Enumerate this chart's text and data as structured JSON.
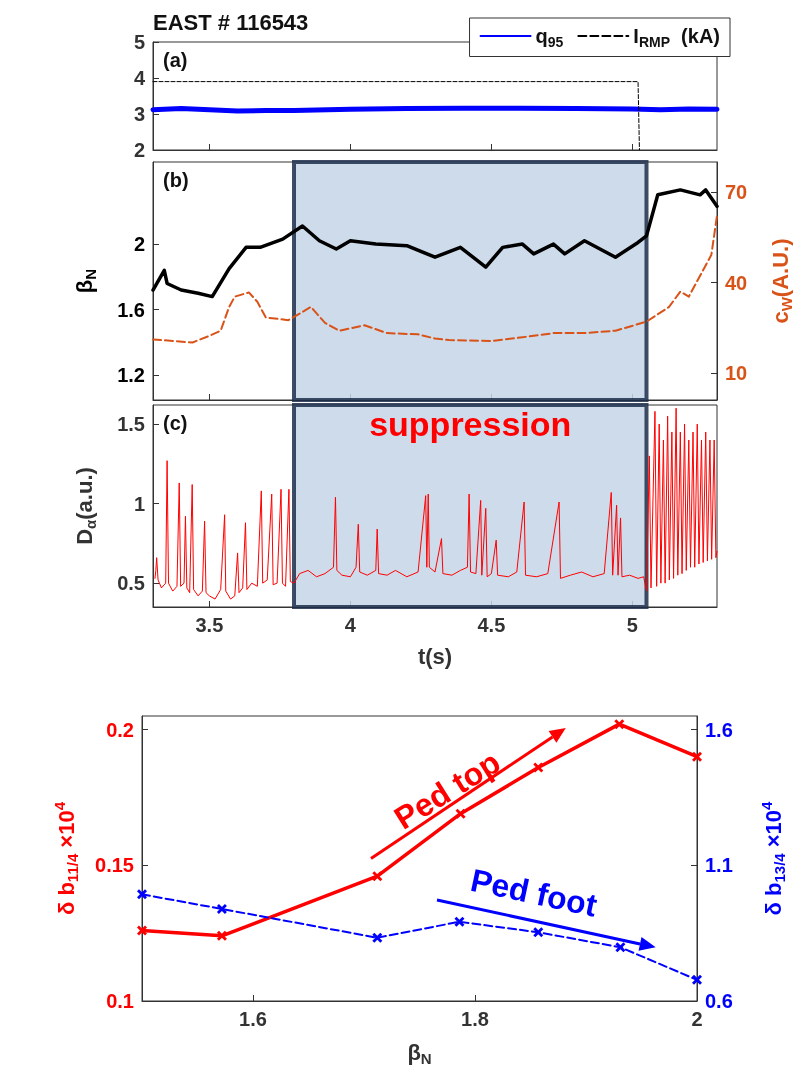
{
  "chart_data": [
    {
      "type": "line",
      "title": "EAST # 116543",
      "annotations": [
        "(a)"
      ],
      "xlim": [
        3.3,
        5.3
      ],
      "xticks": [
        3.5,
        4,
        4.5,
        5
      ],
      "ylim": [
        2,
        5
      ],
      "yticks": [
        2,
        3,
        4,
        5
      ],
      "tick_labels": "y",
      "legend": "top right",
      "marker": "none",
      "series": [
        {
          "name": "q$_{95}$",
          "color": "#0000ff",
          "line_style": "solid",
          "x": [
            3.3,
            3.4,
            3.5,
            3.6,
            3.7,
            3.8,
            4,
            4.2,
            4.4,
            4.6,
            4.8,
            5,
            5.1,
            5.2,
            5.3
          ],
          "values": [
            3.12,
            3.15,
            3.12,
            3.08,
            3.1,
            3.1,
            3.13,
            3.15,
            3.16,
            3.16,
            3.15,
            3.14,
            3.12,
            3.14,
            3.13
          ]
        },
        {
          "name": "I$_{RMP}$  (kA)",
          "color": "#000000",
          "line_style": "dashed",
          "x": [
            3.3,
            5.02,
            5.025
          ],
          "values": [
            3.9,
            3.9,
            2
          ]
        }
      ]
    },
    {
      "type": "line",
      "ylabel": "β$_{N}$",
      "y2label": "c$_{W}$(A.U.)",
      "annotations": [
        "(b)"
      ],
      "xlim": [
        3.3,
        5.3
      ],
      "xticks": [
        3.5,
        4,
        4.5,
        5
      ],
      "ylim": [
        1.05,
        2.5
      ],
      "yticks": [
        1.2,
        1.6,
        2
      ],
      "y2lim": [
        1,
        80
      ],
      "y2ticks": [
        10,
        40,
        70
      ],
      "tick_labels": "y",
      "marker": "none",
      "bands": [
        {
          "axis": "x",
          "from": 3.8,
          "to": 5.05,
          "color": "#c5d5e8"
        }
      ],
      "series": [
        {
          "color": "#000000",
          "line_style": "solid",
          "x": [
            3.3,
            3.34,
            3.35,
            3.4,
            3.46,
            3.51,
            3.57,
            3.63,
            3.68,
            3.76,
            3.83,
            3.89,
            3.95,
            4.0,
            4.09,
            4.2,
            4.3,
            4.39,
            4.48,
            4.54,
            4.61,
            4.65,
            4.72,
            4.76,
            4.83,
            4.94,
            5.02,
            5.05,
            5.09,
            5.17,
            5.24,
            5.26,
            5.3
          ],
          "values": [
            1.72,
            1.84,
            1.76,
            1.72,
            1.7,
            1.68,
            1.85,
            1.98,
            1.98,
            2.03,
            2.11,
            2.02,
            1.97,
            2.02,
            2.0,
            1.99,
            1.92,
            1.98,
            1.86,
            1.98,
            2.0,
            1.94,
            2.0,
            1.94,
            2.02,
            1.92,
            2.01,
            2.05,
            2.3,
            2.33,
            2.3,
            2.33,
            2.23
          ]
        },
        {
          "color": "#d95319",
          "axis": "y2",
          "line_style": "dashed",
          "x": [
            3.3,
            3.44,
            3.5,
            3.54,
            3.57,
            3.59,
            3.64,
            3.67,
            3.7,
            3.78,
            3.86,
            3.91,
            3.96,
            4.05,
            4.13,
            4.24,
            4.3,
            4.35,
            4.5,
            4.61,
            4.72,
            4.83,
            4.94,
            5.05,
            5.13,
            5.17,
            5.2,
            5.28,
            5.3
          ],
          "values": [
            21.1,
            20.1,
            22.3,
            24,
            31.9,
            35.3,
            36.7,
            33.6,
            28.4,
            27.5,
            31.9,
            26.6,
            24,
            25.8,
            23.2,
            22.8,
            21.4,
            20.9,
            20.6,
            21.8,
            23.2,
            23.2,
            24,
            27,
            31.9,
            37,
            35.3,
            49.2,
            62.2
          ]
        }
      ]
    },
    {
      "type": "line",
      "ylabel": "D$_{α}$(a.u.)",
      "xlabel": "t(s)",
      "annotations": [
        "(c)"
      ],
      "xlim": [
        3.3,
        5.3
      ],
      "xticks": [
        3.5,
        4,
        4.5,
        5
      ],
      "ylim": [
        0.35,
        1.62
      ],
      "yticks": [
        0.5,
        1,
        1.5
      ],
      "marker": "none",
      "bands": [
        {
          "axis": "x",
          "from": 3.8,
          "to": 5.05,
          "color": "#c5d5e8",
          "label": "suppression"
        }
      ],
      "series": [
        {
          "color": "#ff0000",
          "line_style": "solid",
          "x": [
            3.307,
            3.31,
            3.313,
            3.318,
            3.33,
            3.345,
            3.35,
            3.355,
            3.37,
            3.385,
            3.393,
            3.398,
            3.41,
            3.415,
            3.42,
            3.43,
            3.439,
            3.444,
            3.46,
            3.475,
            3.483,
            3.488,
            3.5,
            3.52,
            3.54,
            3.554,
            3.558,
            3.575,
            3.59,
            3.6,
            3.605,
            3.618,
            3.628,
            3.633,
            3.65,
            3.67,
            3.684,
            3.689,
            3.705,
            3.721,
            3.726,
            3.74,
            3.754,
            3.759,
            3.77,
            3.782,
            3.787,
            3.8,
            3.82,
            3.85,
            3.88,
            3.91,
            3.94,
            3.947,
            3.952,
            3.97,
            4.0,
            4.02,
            4.028,
            4.033,
            4.06,
            4.09,
            4.095,
            4.1,
            4.13,
            4.16,
            4.2,
            4.24,
            4.267,
            4.271,
            4.276,
            4.28,
            4.3,
            4.323,
            4.328,
            4.36,
            4.39,
            4.415,
            4.421,
            4.426,
            4.445,
            4.462,
            4.466,
            4.48,
            4.485,
            4.5,
            4.517,
            4.522,
            4.56,
            4.59,
            4.616,
            4.621,
            4.66,
            4.7,
            4.74,
            4.745,
            4.78,
            4.82,
            4.86,
            4.9,
            4.925,
            4.93,
            4.944,
            4.949,
            4.958,
            4.963,
            4.99,
            5.02,
            5.04,
            5.05,
            5.06,
            5.066,
            5.08,
            5.086,
            5.095,
            5.101,
            5.11,
            5.116,
            5.125,
            5.131,
            5.14,
            5.146,
            5.155,
            5.161,
            5.17,
            5.176,
            5.185,
            5.191,
            5.2,
            5.206,
            5.215,
            5.221,
            5.23,
            5.236,
            5.245,
            5.251,
            5.26,
            5.266,
            5.275,
            5.281,
            5.29,
            5.296,
            5.3
          ],
          "values": [
            0.53,
            0.58,
            0.66,
            0.52,
            0.47,
            0.5,
            1.27,
            0.5,
            0.45,
            0.48,
            1.13,
            0.48,
            0.5,
            0.92,
            0.47,
            0.44,
            1.12,
            0.46,
            0.42,
            0.45,
            0.89,
            0.44,
            0.42,
            0.4,
            0.46,
            0.93,
            0.45,
            0.4,
            0.42,
            0.69,
            0.44,
            0.47,
            0.88,
            0.46,
            0.5,
            0.48,
            1.08,
            0.5,
            0.52,
            1.06,
            0.49,
            0.5,
            1.09,
            0.5,
            0.48,
            1.09,
            0.51,
            0.5,
            0.56,
            0.58,
            0.54,
            0.56,
            0.6,
            1.04,
            0.58,
            0.55,
            0.54,
            0.6,
            0.87,
            0.57,
            0.55,
            0.58,
            0.84,
            0.56,
            0.55,
            0.58,
            0.54,
            0.57,
            1.05,
            0.6,
            1.06,
            0.6,
            0.57,
            0.78,
            0.56,
            0.55,
            0.58,
            0.6,
            1.06,
            0.57,
            0.56,
            1.02,
            0.55,
            0.97,
            0.54,
            0.56,
            0.77,
            0.55,
            0.54,
            0.57,
            1.01,
            0.55,
            0.54,
            0.56,
            1.01,
            0.53,
            0.55,
            0.57,
            0.54,
            0.56,
            1.07,
            0.55,
            0.99,
            0.55,
            0.91,
            0.54,
            0.55,
            0.53,
            0.54,
            0.45,
            1.3,
            0.47,
            1.58,
            0.48,
            1.5,
            0.5,
            1.4,
            0.5,
            1.55,
            0.52,
            1.45,
            0.53,
            1.6,
            0.55,
            1.45,
            0.56,
            1.5,
            0.58,
            1.4,
            0.6,
            1.45,
            0.6,
            1.5,
            0.62,
            1.4,
            0.63,
            1.45,
            0.64,
            1.4,
            0.65,
            1.4,
            0.66,
            0.7
          ]
        }
      ]
    },
    {
      "type": "line",
      "xlabel": "β$_{N}$",
      "ylabel": "δ b$_{11/4}$ ×10$^{4}$",
      "y2label": "δ b$_{13/4}$ ×10$^{4}$",
      "annotations": [
        "Ped top",
        "Ped foot"
      ],
      "xlim": [
        1.5,
        2
      ],
      "xticks": [
        1.6,
        1.8,
        2
      ],
      "ylim": [
        0.1,
        0.205
      ],
      "yticks": [
        0.1,
        0.15,
        0.2
      ],
      "y2lim": [
        0.6,
        1.65
      ],
      "y2ticks": [
        0.6,
        1.1,
        1.6
      ],
      "marker": "cross",
      "series": [
        {
          "color": "#ff0000",
          "line_style": "solid",
          "x": [
            1.5,
            1.572,
            1.712,
            1.787,
            1.857,
            1.93,
            2.0
          ],
          "values": [
            0.126,
            0.124,
            0.146,
            0.169,
            0.186,
            0.202,
            0.19
          ]
        },
        {
          "color": "#0000ff",
          "axis": "y2",
          "line_style": "dashed",
          "x": [
            1.5,
            1.572,
            1.712,
            1.786,
            1.857,
            1.931,
            2.0
          ],
          "values": [
            0.993,
            0.939,
            0.833,
            0.892,
            0.853,
            0.798,
            0.678
          ]
        }
      ]
    }
  ]
}
